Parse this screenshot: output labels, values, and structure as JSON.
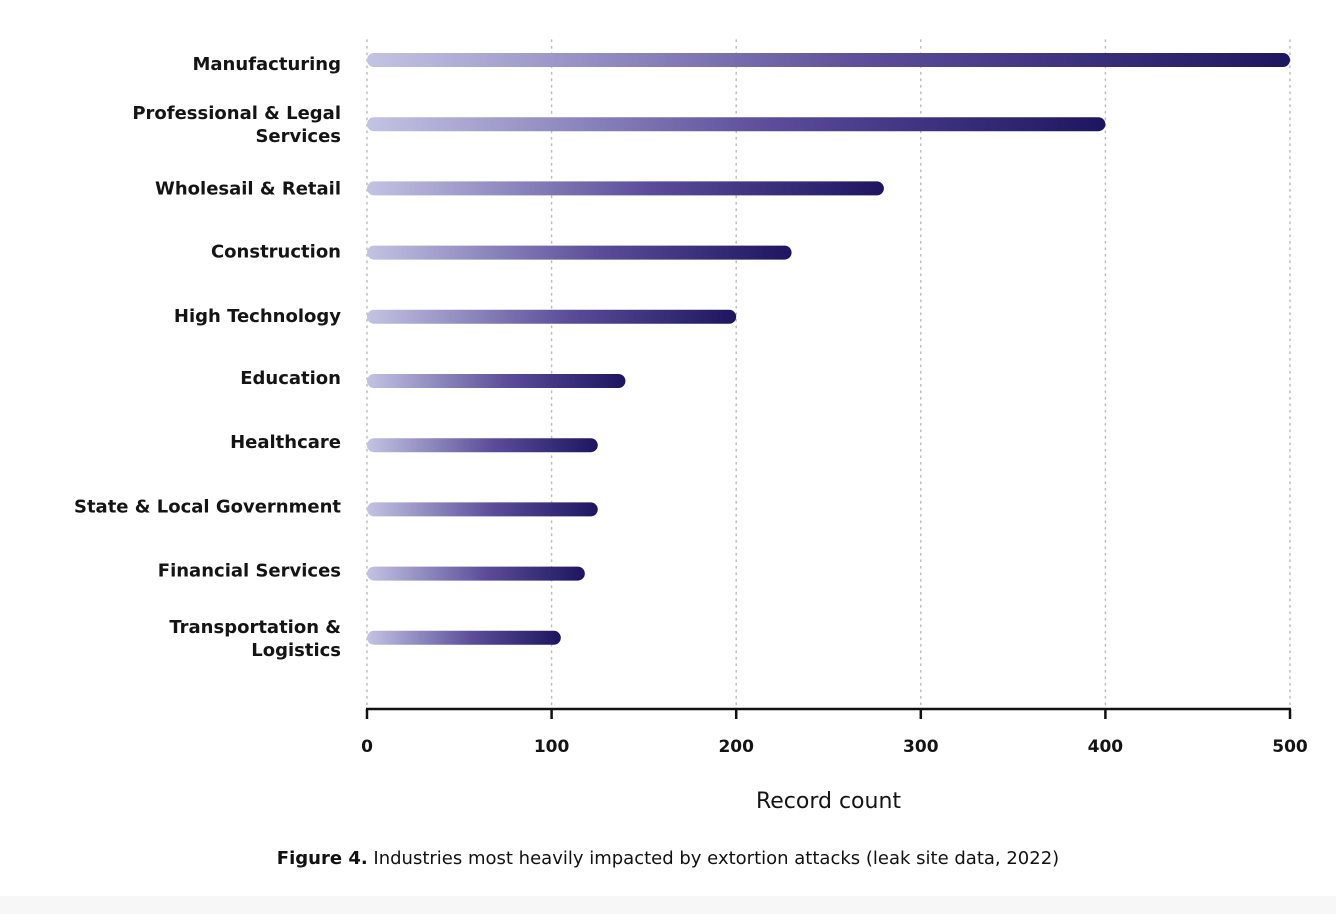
{
  "chart_data": {
    "type": "bar",
    "orientation": "horizontal",
    "categories": [
      [
        "Manufacturing"
      ],
      [
        "Professional & Legal",
        "Services"
      ],
      [
        "Wholesail & Retail"
      ],
      [
        "Construction"
      ],
      [
        "High Technology"
      ],
      [
        "Education"
      ],
      [
        "Healthcare"
      ],
      [
        "State & Local Government"
      ],
      [
        "Financial Services"
      ],
      [
        "Transportation &",
        "Logistics"
      ]
    ],
    "values": [
      500,
      400,
      280,
      230,
      200,
      140,
      125,
      125,
      118,
      105
    ],
    "xlabel": "Record count",
    "ylabel": "",
    "xlim": [
      0,
      500
    ],
    "xticks": [
      0,
      100,
      200,
      300,
      400,
      500
    ],
    "grid": "vertical dotted",
    "colors": {
      "bar_start": "#c3c3e3",
      "bar_mid": "#5a4c99",
      "bar_end": "#1e1560",
      "grid": "#bdbdbd",
      "axis": "#111111"
    }
  },
  "caption": {
    "label": "Figure 4.",
    "text": " Industries most heavily impacted by extortion attacks (leak site data, 2022)"
  }
}
